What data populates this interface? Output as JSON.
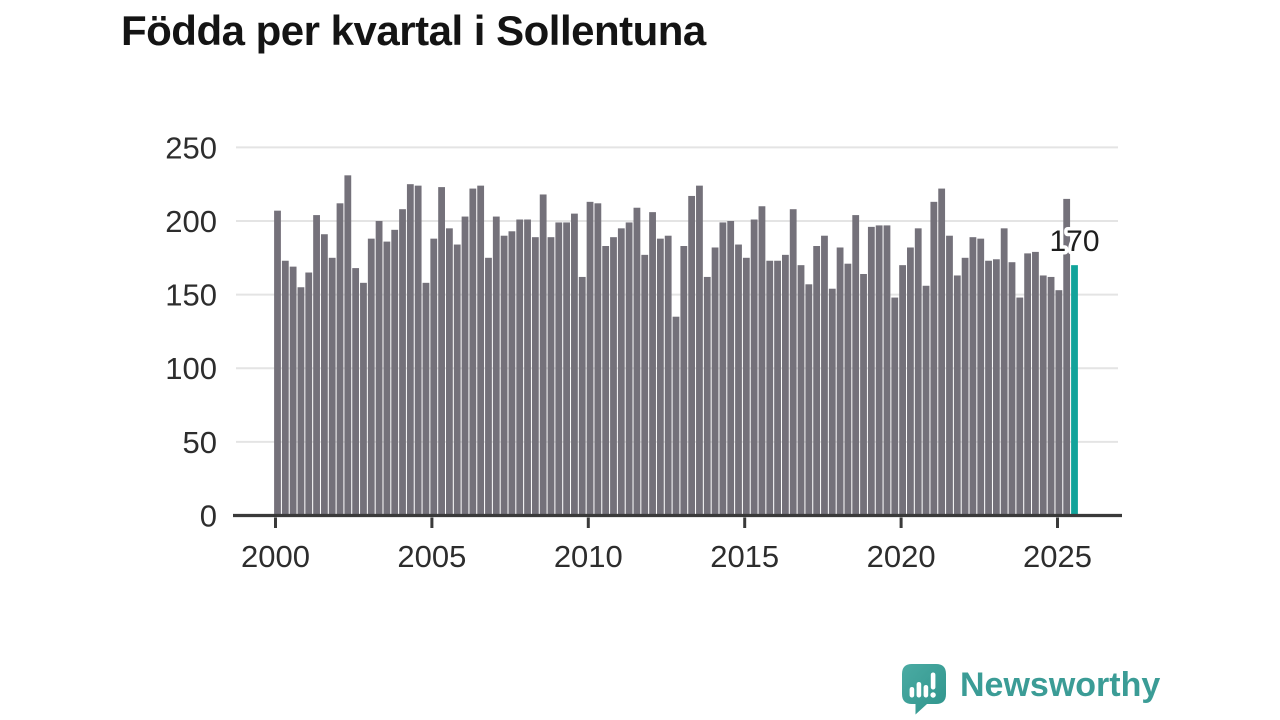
{
  "title": "Födda per kvartal i Sollentuna",
  "annotation": {
    "last_value_label": "170"
  },
  "branding": {
    "name": "Newsworthy",
    "icon": "newsworthy-speech-bubble-barchart-icon"
  },
  "colors": {
    "background": "#ffffff",
    "bar": "#74717A",
    "highlight_bar": "#11A39A",
    "grid": "#E4E4E4",
    "axis": "#3A3A3A",
    "tick_label": "#2D2D2D",
    "title": "#141414",
    "value_label": "#1E1E1E",
    "brand_teal": "#3B9C96"
  },
  "chart_data": {
    "type": "bar",
    "title": "Födda per kvartal i Sollentuna",
    "x_unit": "quarter",
    "x_start": "2000 Q1",
    "x_end": "2025 Q3",
    "values": [
      207,
      173,
      169,
      155,
      165,
      204,
      191,
      175,
      212,
      231,
      168,
      158,
      188,
      200,
      186,
      194,
      208,
      225,
      224,
      158,
      188,
      223,
      195,
      184,
      203,
      222,
      224,
      175,
      203,
      190,
      193,
      201,
      201,
      189,
      218,
      189,
      199,
      199,
      205,
      162,
      213,
      212,
      183,
      189,
      195,
      199,
      209,
      177,
      206,
      188,
      190,
      135,
      183,
      217,
      224,
      162,
      182,
      199,
      200,
      184,
      175,
      201,
      210,
      173,
      173,
      177,
      208,
      170,
      157,
      183,
      190,
      154,
      182,
      171,
      204,
      164,
      196,
      197,
      197,
      148,
      170,
      182,
      195,
      156,
      213,
      222,
      190,
      163,
      175,
      189,
      188,
      173,
      174,
      195,
      172,
      148,
      178,
      179,
      163,
      162,
      153,
      215,
      170
    ],
    "highlight_index": 102,
    "highlight_value": 170,
    "highlight_label": "170",
    "x_tick_labels": [
      "2000",
      "2005",
      "2010",
      "2015",
      "2020",
      "2025"
    ],
    "y_tick_values": [
      0,
      50,
      100,
      150,
      200,
      250
    ],
    "ylim": [
      0,
      250
    ],
    "grid": "horizontal",
    "legend": "none",
    "xlabel": "",
    "ylabel": ""
  }
}
